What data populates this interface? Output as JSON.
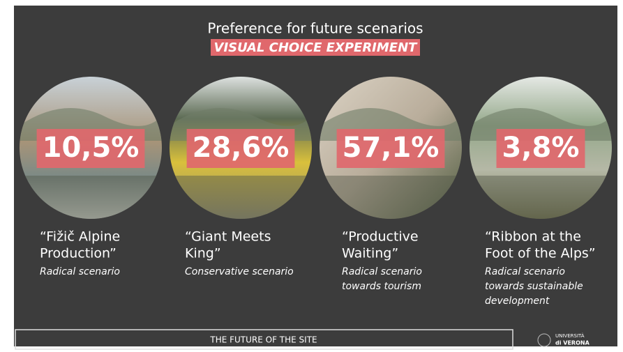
{
  "header": {
    "title": "Preference for future scenarios",
    "subtitle": "VISUAL CHOICE EXPERIMENT"
  },
  "scenarios": [
    {
      "share": "10,5%",
      "name_lines": [
        "“Fižič Alpine",
        "Production”"
      ],
      "description_lines": [
        "Radical scenario"
      ]
    },
    {
      "share": "28,6%",
      "name_lines": [
        "“Giant Meets",
        "King”"
      ],
      "description_lines": [
        "Conservative scenario"
      ]
    },
    {
      "share": "57,1%",
      "name_lines": [
        "“Productive",
        "Waiting”"
      ],
      "description_lines": [
        "Radical scenario",
        "towards tourism"
      ]
    },
    {
      "share": "3,8%",
      "name_lines": [
        "“Ribbon at the",
        "Foot of the Alps”"
      ],
      "description_lines": [
        "Radical scenario",
        "towards sustainable",
        "development"
      ]
    }
  ],
  "footer": {
    "section": "THE FUTURE OF THE SITE",
    "logo_lines": [
      "UNIVERSITÀ",
      "di VERONA"
    ]
  }
}
